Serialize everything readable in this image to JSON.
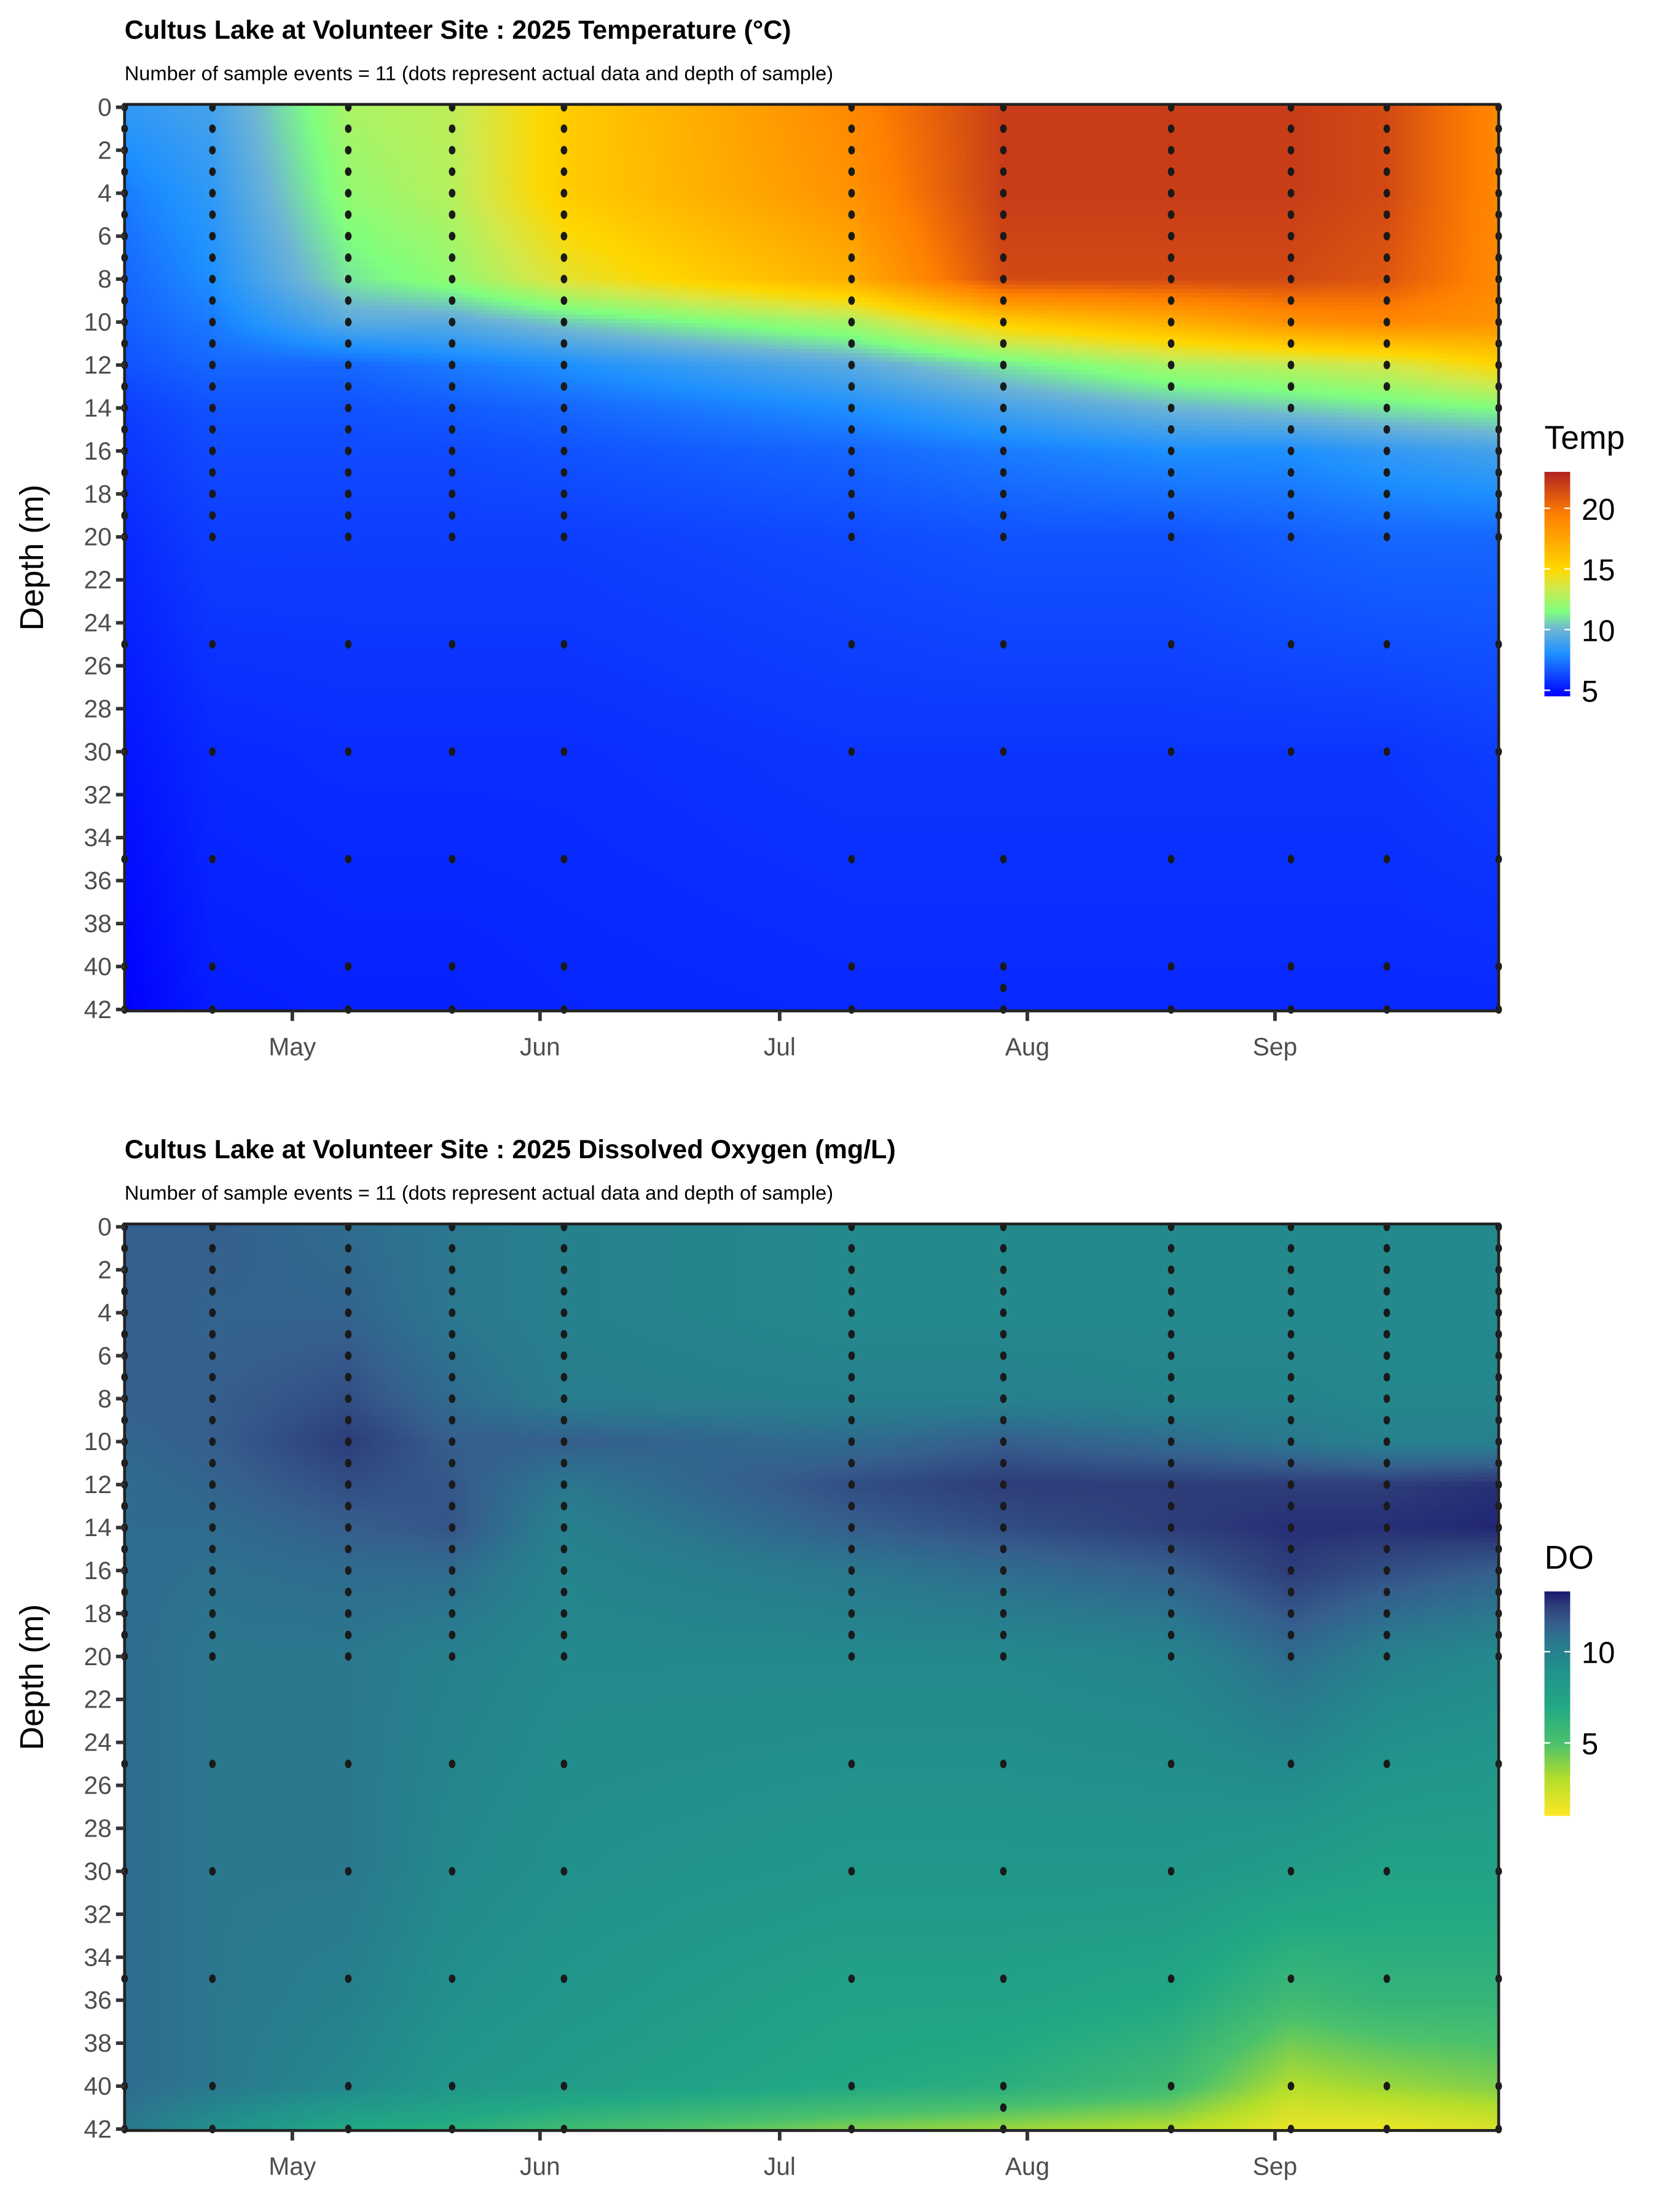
{
  "chart_data": [
    {
      "type": "heatmap",
      "title": "Cultus Lake at Volunteer Site :  2025 Temperature (°C)",
      "subtitle": "Number of sample events = 11 (dots represent actual data and depth of sample)",
      "xlabel": "",
      "ylabel": "Depth (m)",
      "x_ticks": [
        "May",
        "Jun",
        "Jul",
        "Aug",
        "Sep"
      ],
      "x_tick_dates": [
        "2025-05-01",
        "2025-06-01",
        "2025-07-01",
        "2025-08-01",
        "2025-09-01"
      ],
      "x_range": [
        "2025-04-10",
        "2025-09-29"
      ],
      "y_ticks": [
        0,
        2,
        4,
        6,
        8,
        10,
        12,
        14,
        16,
        18,
        20,
        22,
        24,
        26,
        28,
        30,
        32,
        34,
        36,
        38,
        40,
        42
      ],
      "ylim": [
        42,
        0
      ],
      "legend": {
        "title": "Temp",
        "ticks": [
          5,
          10,
          15,
          20
        ],
        "range": [
          4.5,
          23
        ],
        "position": "right"
      },
      "colorscale": [
        [
          4.5,
          "#0000ff"
        ],
        [
          8,
          "#1e90ff"
        ],
        [
          10,
          "#6cb4d6"
        ],
        [
          11.5,
          "#7fff7f"
        ],
        [
          13.5,
          "#d4e84a"
        ],
        [
          15,
          "#ffd700"
        ],
        [
          17.5,
          "#ffa500"
        ],
        [
          19.5,
          "#ff7f00"
        ],
        [
          23,
          "#b22222"
        ]
      ],
      "sample_dates": [
        "2025-04-10",
        "2025-04-21",
        "2025-05-08",
        "2025-05-21",
        "2025-06-04",
        "2025-07-10",
        "2025-07-29",
        "2025-08-19",
        "2025-09-03",
        "2025-09-15",
        "2025-09-29"
      ],
      "profile_depths": [
        0,
        4,
        8,
        10,
        12,
        14,
        16,
        20,
        30,
        42
      ],
      "profiles": [
        [
          8.5,
          7.5,
          7,
          6.8,
          6.5,
          6,
          5.8,
          5.5,
          5,
          4.5
        ],
        [
          9,
          8.5,
          8,
          7.5,
          7,
          6.5,
          6.3,
          6,
          5.5,
          5.2
        ],
        [
          12.5,
          12,
          11,
          9.5,
          7,
          6.5,
          6.3,
          6,
          5.6,
          5.3
        ],
        [
          13,
          12.8,
          12,
          9.5,
          7.5,
          6.7,
          6.3,
          6,
          5.6,
          5.3
        ],
        [
          15.5,
          15.5,
          14,
          10.5,
          8,
          7,
          6.5,
          6,
          5.6,
          5.4
        ],
        [
          19,
          18.5,
          17,
          12.5,
          9.5,
          8,
          7,
          6.3,
          5.8,
          5.5
        ],
        [
          22,
          22,
          21.5,
          15.5,
          11,
          9,
          7.5,
          6.5,
          5.8,
          5.5
        ],
        [
          22,
          22,
          21.5,
          17,
          12.5,
          10,
          8,
          6.5,
          5.8,
          5.5
        ],
        [
          22,
          22,
          21.5,
          18.5,
          13,
          10.5,
          8,
          6.8,
          5.8,
          5.5
        ],
        [
          21.5,
          21.5,
          21,
          19,
          13.5,
          11,
          8.5,
          7,
          5.8,
          5.5
        ],
        [
          19,
          19,
          19,
          18.5,
          15,
          11.5,
          9,
          7,
          6,
          5.5
        ]
      ],
      "sample_depths": [
        0,
        1,
        2,
        3,
        4,
        5,
        6,
        7,
        8,
        9,
        10,
        11,
        12,
        13,
        14,
        15,
        16,
        17,
        18,
        19,
        20,
        25,
        30,
        35,
        40,
        42
      ],
      "extra_samples": [
        {
          "date": "2025-07-29",
          "depth": 41
        }
      ]
    },
    {
      "type": "heatmap",
      "title": "Cultus Lake at Volunteer Site :  2025 Dissolved Oxygen (mg/L)",
      "subtitle": "Number of sample events = 11 (dots represent actual data and depth of sample)",
      "xlabel": "",
      "ylabel": "Depth (m)",
      "x_ticks": [
        "May",
        "Jun",
        "Jul",
        "Aug",
        "Sep"
      ],
      "x_tick_dates": [
        "2025-05-01",
        "2025-06-01",
        "2025-07-01",
        "2025-08-01",
        "2025-09-01"
      ],
      "x_range": [
        "2025-04-10",
        "2025-09-29"
      ],
      "y_ticks": [
        0,
        2,
        4,
        6,
        8,
        10,
        12,
        14,
        16,
        18,
        20,
        22,
        24,
        26,
        28,
        30,
        32,
        34,
        36,
        38,
        40,
        42
      ],
      "ylim": [
        42,
        0
      ],
      "legend": {
        "title": "DO",
        "ticks": [
          5,
          10
        ],
        "range": [
          1,
          13.3
        ],
        "position": "right"
      },
      "colorscale": [
        [
          1,
          "#fde725"
        ],
        [
          3,
          "#b5de2b"
        ],
        [
          5,
          "#4ac16d"
        ],
        [
          7,
          "#22a884"
        ],
        [
          9,
          "#21918c"
        ],
        [
          10.5,
          "#2a788e"
        ],
        [
          11.5,
          "#355f8d"
        ],
        [
          12.5,
          "#2e3d7a"
        ],
        [
          13.3,
          "#191970"
        ]
      ],
      "sample_dates": [
        "2025-04-10",
        "2025-04-21",
        "2025-05-08",
        "2025-05-21",
        "2025-06-04",
        "2025-07-10",
        "2025-07-29",
        "2025-08-19",
        "2025-09-03",
        "2025-09-15",
        "2025-09-29"
      ],
      "profile_depths": [
        0,
        4,
        8,
        10,
        12,
        14,
        16,
        20,
        30,
        36,
        40,
        42
      ],
      "profiles": [
        [
          11.5,
          11.5,
          11.5,
          11.2,
          11,
          11,
          11,
          11,
          11,
          11,
          11,
          10.5
        ],
        [
          11.5,
          11.3,
          11.5,
          11.5,
          11.3,
          11,
          10.8,
          10.5,
          10.5,
          10.5,
          10.5,
          9
        ],
        [
          11,
          11.3,
          12,
          12.5,
          12,
          11.5,
          11,
          10.5,
          10.5,
          10,
          9.5,
          7
        ],
        [
          10.5,
          10.5,
          11,
          11.5,
          11.7,
          11.8,
          11,
          10,
          9.5,
          9,
          8.5,
          6.5
        ],
        [
          10,
          10,
          10.2,
          11.5,
          10.5,
          10,
          9.8,
          9.5,
          9,
          8.5,
          8,
          5.5
        ],
        [
          9.5,
          9.5,
          10,
          11,
          12,
          11.5,
          10.5,
          9.5,
          8.5,
          7.5,
          7,
          4
        ],
        [
          9.5,
          9.5,
          10,
          11.5,
          12.5,
          12,
          11,
          9.5,
          8.5,
          7.5,
          6.5,
          3.5
        ],
        [
          9.5,
          9.5,
          9.8,
          11,
          12.5,
          12.5,
          11.5,
          9.8,
          8.5,
          7,
          5.5,
          3
        ],
        [
          9.5,
          9.5,
          9.8,
          10.5,
          12.5,
          12.8,
          12.5,
          11,
          8,
          5.5,
          3,
          1.5
        ],
        [
          9.5,
          9.5,
          9.6,
          10,
          12.5,
          12.8,
          12,
          10,
          7.5,
          6,
          3.5,
          1.5
        ],
        [
          9.5,
          9.5,
          9.6,
          10,
          12.8,
          13,
          11.5,
          9.5,
          7.5,
          6,
          4,
          2
        ]
      ],
      "sample_depths": [
        0,
        1,
        2,
        3,
        4,
        5,
        6,
        7,
        8,
        9,
        10,
        11,
        12,
        13,
        14,
        15,
        16,
        17,
        18,
        19,
        20,
        25,
        30,
        35,
        40,
        42
      ],
      "extra_samples": [
        {
          "date": "2025-07-29",
          "depth": 41
        }
      ]
    }
  ]
}
